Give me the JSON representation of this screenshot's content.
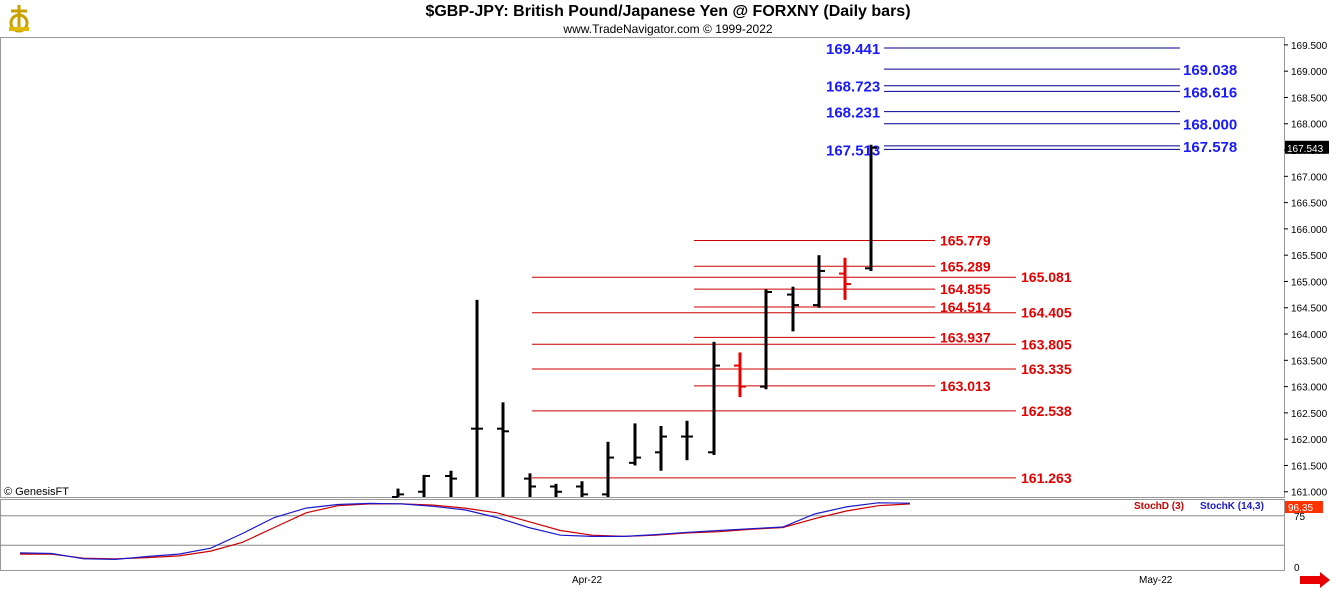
{
  "header": {
    "title": "$GBP-JPY:  British Pound/Japanese Yen @ FORXNY  (Daily bars)",
    "subtitle": "www.TradeNavigator.com © 1999-2022",
    "logo_icon": "trade-navigator-logo-icon",
    "copyright": "© GenesisFT"
  },
  "colors": {
    "blue_level": "#1a1aff",
    "red_level": "#e60000",
    "bar": "#000000",
    "bar_red": "#e60000",
    "stochD": "#cc0000",
    "stochK": "#1a1acc",
    "panel_border": "#999999"
  },
  "chart_data": [
    {
      "type": "ohlc",
      "title": "$GBP-JPY:  British Pound/Japanese Yen @ FORXNY  (Daily bars)",
      "ylim": [
        160.9,
        169.65
      ],
      "y_ticks": [
        "161.000",
        "161.500",
        "162.000",
        "162.500",
        "163.000",
        "163.500",
        "164.000",
        "164.500",
        "165.000",
        "165.500",
        "166.000",
        "166.500",
        "167.000",
        "167.500",
        "168.000",
        "168.500",
        "169.000",
        "169.500"
      ],
      "x_ticks": [
        "Apr-22",
        "May-22"
      ],
      "last_price": "167.543",
      "bars": [
        {
          "o": 160.9,
          "h": 161.06,
          "l": 160.9,
          "c": 160.95,
          "color": "black"
        },
        {
          "o": 161.0,
          "h": 161.32,
          "l": 160.9,
          "c": 161.3,
          "color": "black"
        },
        {
          "o": 161.3,
          "h": 161.4,
          "l": 160.9,
          "c": 161.25,
          "color": "black"
        },
        {
          "o": 162.2,
          "h": 164.65,
          "l": 160.9,
          "c": 162.2,
          "color": "black"
        },
        {
          "o": 162.2,
          "h": 162.7,
          "l": 160.9,
          "c": 162.15,
          "color": "black"
        },
        {
          "o": 161.25,
          "h": 161.35,
          "l": 160.9,
          "c": 161.1,
          "color": "black"
        },
        {
          "o": 161.1,
          "h": 161.15,
          "l": 160.9,
          "c": 161.0,
          "color": "black"
        },
        {
          "o": 161.1,
          "h": 161.2,
          "l": 160.9,
          "c": 160.95,
          "color": "black"
        },
        {
          "o": 160.95,
          "h": 161.95,
          "l": 160.9,
          "c": 161.65,
          "color": "black"
        },
        {
          "o": 161.55,
          "h": 162.3,
          "l": 161.5,
          "c": 161.65,
          "color": "black"
        },
        {
          "o": 161.75,
          "h": 162.25,
          "l": 161.4,
          "c": 162.05,
          "color": "black"
        },
        {
          "o": 162.05,
          "h": 162.35,
          "l": 161.6,
          "c": 162.05,
          "color": "black"
        },
        {
          "o": 161.75,
          "h": 163.85,
          "l": 161.7,
          "c": 163.4,
          "color": "black"
        },
        {
          "o": 163.4,
          "h": 163.65,
          "l": 162.8,
          "c": 163.0,
          "color": "red"
        },
        {
          "o": 163.0,
          "h": 164.85,
          "l": 162.95,
          "c": 164.8,
          "color": "black"
        },
        {
          "o": 164.75,
          "h": 164.9,
          "l": 164.05,
          "c": 164.55,
          "color": "black"
        },
        {
          "o": 164.55,
          "h": 165.5,
          "l": 164.5,
          "c": 165.2,
          "color": "black"
        },
        {
          "o": 165.15,
          "h": 165.45,
          "l": 164.65,
          "c": 164.95,
          "color": "red"
        },
        {
          "o": 165.25,
          "h": 167.6,
          "l": 165.2,
          "c": 167.543,
          "color": "black"
        }
      ],
      "levels": [
        {
          "value": 169.441,
          "label": "169.441",
          "color": "blue",
          "side": "left"
        },
        {
          "value": 169.038,
          "label": "169.038",
          "color": "blue",
          "side": "right"
        },
        {
          "value": 168.723,
          "label": "168.723",
          "color": "blue",
          "side": "left"
        },
        {
          "value": 168.616,
          "label": "168.616",
          "color": "blue",
          "side": "right"
        },
        {
          "value": 168.231,
          "label": "168.231",
          "color": "blue",
          "side": "left"
        },
        {
          "value": 168.0,
          "label": "168.000",
          "color": "blue",
          "side": "right"
        },
        {
          "value": 167.513,
          "label": "167.513",
          "color": "blue",
          "side": "left"
        },
        {
          "value": 167.578,
          "label": "167.578",
          "color": "blue",
          "side": "right"
        },
        {
          "value": 165.779,
          "label": "165.779",
          "color": "red",
          "side": "mid"
        },
        {
          "value": 165.289,
          "label": "165.289",
          "color": "red",
          "side": "mid"
        },
        {
          "value": 165.081,
          "label": "165.081",
          "color": "red",
          "side": "right"
        },
        {
          "value": 164.855,
          "label": "164.855",
          "color": "red",
          "side": "mid"
        },
        {
          "value": 164.514,
          "label": "164.514",
          "color": "red",
          "side": "mid"
        },
        {
          "value": 164.405,
          "label": "164.405",
          "color": "red",
          "side": "right"
        },
        {
          "value": 163.937,
          "label": "163.937",
          "color": "red",
          "side": "mid"
        },
        {
          "value": 163.805,
          "label": "163.805",
          "color": "red",
          "side": "right"
        },
        {
          "value": 163.335,
          "label": "163.335",
          "color": "red",
          "side": "right"
        },
        {
          "value": 163.013,
          "label": "163.013",
          "color": "red",
          "side": "mid"
        },
        {
          "value": 162.538,
          "label": "162.538",
          "color": "red",
          "side": "right"
        },
        {
          "value": 161.263,
          "label": "161.263",
          "color": "red",
          "side": "right"
        }
      ]
    },
    {
      "type": "line",
      "legend": [
        "StochD (3)",
        "StochK (14,3)"
      ],
      "ylim": [
        0,
        100
      ],
      "y_ticks": [
        "75",
        "0"
      ],
      "last_value": "96.35",
      "series": [
        {
          "name": "StochD (3)",
          "color": "red",
          "values": [
            10,
            10,
            3,
            2,
            4,
            7,
            15,
            30,
            55,
            80,
            92,
            95,
            95,
            93,
            88,
            80,
            65,
            50,
            42,
            40,
            42,
            46,
            48,
            52,
            55,
            70,
            83,
            92,
            95
          ]
        },
        {
          "name": "StochK (14,3)",
          "color": "blue",
          "values": [
            12,
            11,
            2,
            1,
            6,
            10,
            20,
            45,
            72,
            88,
            94,
            96,
            95,
            91,
            85,
            72,
            55,
            42,
            40,
            40,
            43,
            47,
            50,
            53,
            56,
            78,
            90,
            97,
            96.35
          ]
        }
      ]
    }
  ]
}
